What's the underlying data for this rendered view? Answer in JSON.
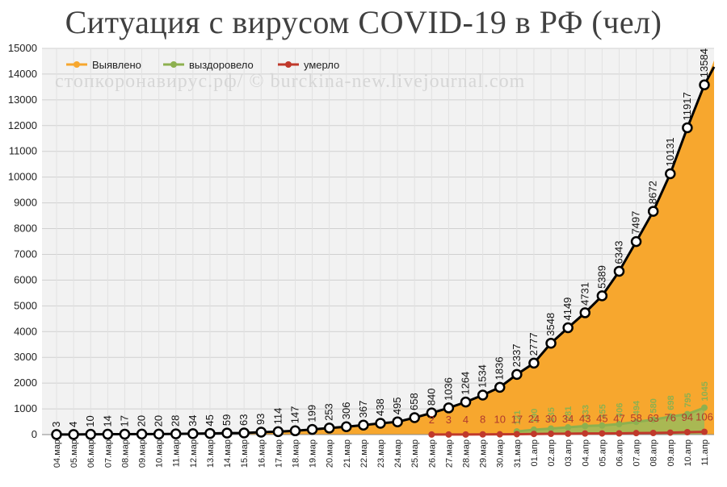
{
  "chart_data": {
    "type": "line",
    "title": "Ситуация с вирусом COVID-19 в РФ (чел)",
    "watermark": "стопкоронавирус.рф/ © burckina-new.livejournal.com",
    "ylim": [
      0,
      15000
    ],
    "yticks": [
      0,
      1000,
      2000,
      3000,
      4000,
      5000,
      6000,
      7000,
      8000,
      9000,
      10000,
      11000,
      12000,
      13000,
      14000,
      15000
    ],
    "grid": true,
    "legend_position": "top-left",
    "categories": [
      "04.мар",
      "05.мар",
      "06.мар",
      "07.мар",
      "08.мар",
      "09.мар",
      "10.мар",
      "11.мар",
      "12.мар",
      "13.мар",
      "14.мар",
      "15.мар",
      "16.мар",
      "17.мар",
      "18.мар",
      "19.мар",
      "20.мар",
      "21.мар",
      "22.мар",
      "23.мар",
      "24.мар",
      "25.мар",
      "26.мар",
      "27.мар",
      "28.мар",
      "29.мар",
      "30.мар",
      "31.мар",
      "01.апр",
      "02.апр",
      "03.апр",
      "04.апр",
      "05.апр",
      "06.апр",
      "07.апр",
      "08.апр",
      "09.апр",
      "10.апр",
      "11.апр"
    ],
    "series": [
      {
        "name": "Выявлено",
        "color": "#f7a72e",
        "line_color": "#000000",
        "values": [
          3,
          4,
          10,
          14,
          17,
          20,
          20,
          28,
          34,
          45,
          59,
          63,
          93,
          114,
          147,
          199,
          253,
          306,
          367,
          438,
          495,
          658,
          840,
          1036,
          1264,
          1534,
          1836,
          2337,
          2777,
          3548,
          4149,
          4731,
          5389,
          6343,
          7497,
          8672,
          10131,
          11917,
          13584
        ],
        "labels": [
          "3",
          "4",
          "10",
          "14",
          "17",
          "20",
          "20",
          "28",
          "34",
          "45",
          "59",
          "63",
          "93",
          "114",
          "147",
          "199",
          "253",
          "306",
          "367",
          "438",
          "495",
          "658",
          "840",
          "1036",
          "1264",
          "1534",
          "1836",
          "2337",
          "2777",
          "3548",
          "4149",
          "4731",
          "5389",
          "6343",
          "7497",
          "8672",
          "10131",
          "11917",
          "13584"
        ]
      },
      {
        "name": "выздоровело",
        "color": "#8db04f",
        "values": [
          null,
          null,
          null,
          null,
          null,
          null,
          null,
          null,
          null,
          null,
          null,
          null,
          null,
          null,
          null,
          null,
          null,
          null,
          null,
          null,
          null,
          null,
          null,
          null,
          null,
          null,
          null,
          121,
          190,
          235,
          281,
          333,
          355,
          406,
          494,
          580,
          698,
          795,
          1045
        ],
        "labels": [
          "",
          "",
          "",
          "",
          "",
          "",
          "",
          "",
          "",
          "",
          "",
          "",
          "",
          "",
          "",
          "",
          "",
          "",
          "",
          "",
          "",
          "",
          "",
          "",
          "",
          "",
          "",
          "121",
          "190",
          "235",
          "281",
          "333",
          "355",
          "406",
          "494",
          "580",
          "698",
          "795",
          "1045"
        ]
      },
      {
        "name": "умерло",
        "color": "#c0392b",
        "values": [
          null,
          null,
          null,
          null,
          null,
          null,
          null,
          null,
          null,
          null,
          null,
          null,
          null,
          null,
          null,
          null,
          null,
          null,
          null,
          null,
          null,
          null,
          2,
          3,
          4,
          8,
          10,
          17,
          24,
          30,
          34,
          43,
          45,
          47,
          58,
          63,
          76,
          94,
          106
        ],
        "labels": [
          "",
          "",
          "",
          "",
          "",
          "",
          "",
          "",
          "",
          "",
          "",
          "",
          "",
          "",
          "",
          "",
          "",
          "",
          "",
          "",
          "",
          "",
          "2",
          "3",
          "4",
          "8",
          "10",
          "17",
          "24",
          "30",
          "34",
          "43",
          "45",
          "47",
          "58",
          "63",
          "76",
          "94",
          "106"
        ]
      }
    ]
  }
}
